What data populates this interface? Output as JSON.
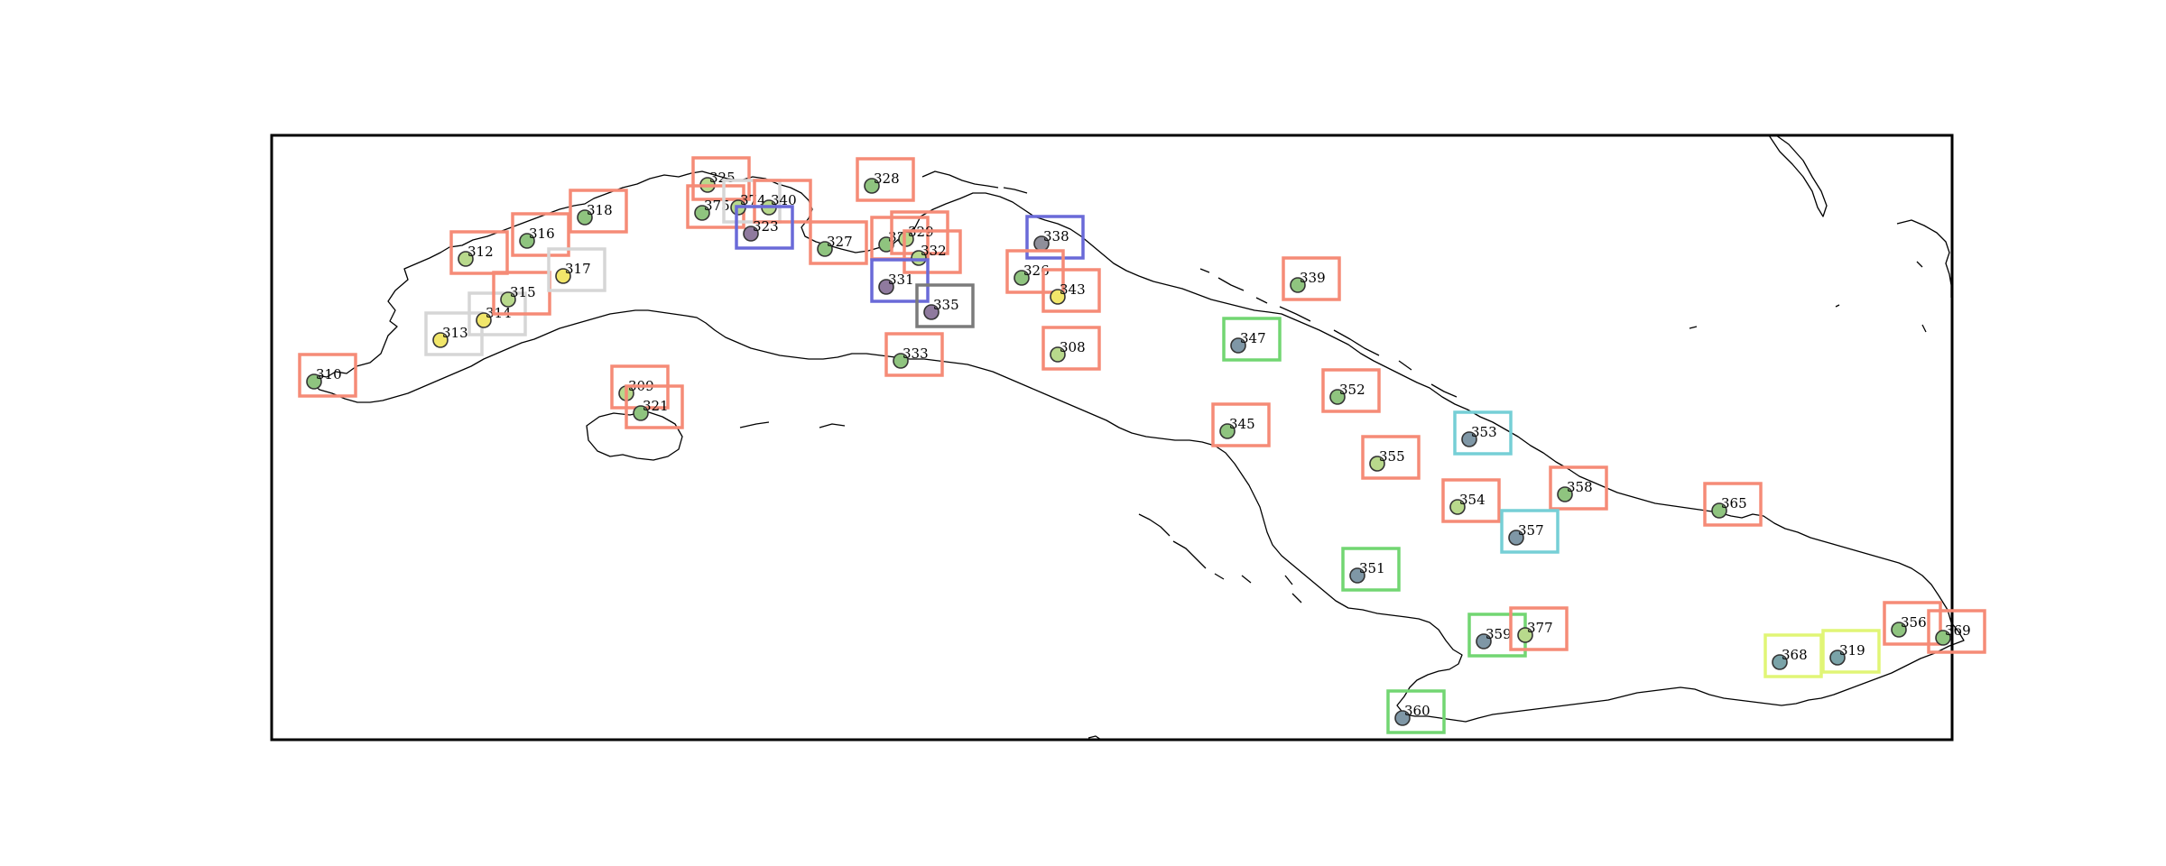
{
  "map": {
    "colors": {
      "box": {
        "salmon": "#f58b77",
        "lightgray": "#d6d6d6",
        "blue": "#6a6ad8",
        "gray": "#7b7b7b",
        "green": "#72d672",
        "cyan": "#76cfd6",
        "yellow": "#e1f576"
      },
      "dot": {
        "lightgreen": "#b8d98c",
        "green": "#8fc47f",
        "yellow": "#f1e66a",
        "gray": "#8f8f9a",
        "slate": "#7f97a6",
        "purple": "#8f7a9e",
        "teal": "#7aa3a8"
      }
    },
    "stations": [
      {
        "id": "310",
        "box": "salmon",
        "dot": "green"
      },
      {
        "id": "312",
        "box": "salmon",
        "dot": "lightgreen"
      },
      {
        "id": "313",
        "box": "lightgray",
        "dot": "yellow"
      },
      {
        "id": "314",
        "box": "lightgray",
        "dot": "yellow"
      },
      {
        "id": "315",
        "box": "salmon",
        "dot": "lightgreen"
      },
      {
        "id": "316",
        "box": "salmon",
        "dot": "green"
      },
      {
        "id": "317",
        "box": "lightgray",
        "dot": "yellow"
      },
      {
        "id": "318",
        "box": "salmon",
        "dot": "green"
      },
      {
        "id": "325",
        "box": "salmon",
        "dot": "lightgreen"
      },
      {
        "id": "375",
        "box": "salmon",
        "dot": "green"
      },
      {
        "id": "374",
        "box": "lightgray",
        "dot": "lightgreen"
      },
      {
        "id": "340",
        "box": "salmon",
        "dot": "lightgreen"
      },
      {
        "id": "323",
        "box": "blue",
        "dot": "purple"
      },
      {
        "id": "328",
        "box": "salmon",
        "dot": "green"
      },
      {
        "id": "327",
        "box": "salmon",
        "dot": "green"
      },
      {
        "id": "330",
        "box": "salmon",
        "dot": "green"
      },
      {
        "id": "329",
        "box": "salmon",
        "dot": "lightgreen"
      },
      {
        "id": "332",
        "box": "salmon",
        "dot": "lightgreen"
      },
      {
        "id": "331",
        "box": "blue",
        "dot": "purple"
      },
      {
        "id": "335",
        "box": "gray",
        "dot": "purple"
      },
      {
        "id": "333",
        "box": "salmon",
        "dot": "green"
      },
      {
        "id": "338",
        "box": "blue",
        "dot": "gray"
      },
      {
        "id": "326",
        "box": "salmon",
        "dot": "green"
      },
      {
        "id": "343",
        "box": "salmon",
        "dot": "yellow"
      },
      {
        "id": "308",
        "box": "salmon",
        "dot": "lightgreen"
      },
      {
        "id": "309",
        "box": "salmon",
        "dot": "lightgreen"
      },
      {
        "id": "321",
        "box": "salmon",
        "dot": "green"
      },
      {
        "id": "339",
        "box": "salmon",
        "dot": "green"
      },
      {
        "id": "347",
        "box": "green",
        "dot": "slate"
      },
      {
        "id": "352",
        "box": "salmon",
        "dot": "green"
      },
      {
        "id": "345",
        "box": "salmon",
        "dot": "green"
      },
      {
        "id": "353",
        "box": "cyan",
        "dot": "slate"
      },
      {
        "id": "355",
        "box": "salmon",
        "dot": "lightgreen"
      },
      {
        "id": "358",
        "box": "salmon",
        "dot": "green"
      },
      {
        "id": "354",
        "box": "salmon",
        "dot": "lightgreen"
      },
      {
        "id": "357",
        "box": "cyan",
        "dot": "slate"
      },
      {
        "id": "365",
        "box": "salmon",
        "dot": "green"
      },
      {
        "id": "351",
        "box": "green",
        "dot": "slate"
      },
      {
        "id": "359",
        "box": "green",
        "dot": "slate"
      },
      {
        "id": "377",
        "box": "salmon",
        "dot": "lightgreen"
      },
      {
        "id": "360",
        "box": "green",
        "dot": "slate"
      },
      {
        "id": "368",
        "box": "yellow",
        "dot": "teal"
      },
      {
        "id": "319",
        "box": "yellow",
        "dot": "teal"
      },
      {
        "id": "356",
        "box": "salmon",
        "dot": "green"
      },
      {
        "id": "369",
        "box": "salmon",
        "dot": "green"
      }
    ]
  }
}
